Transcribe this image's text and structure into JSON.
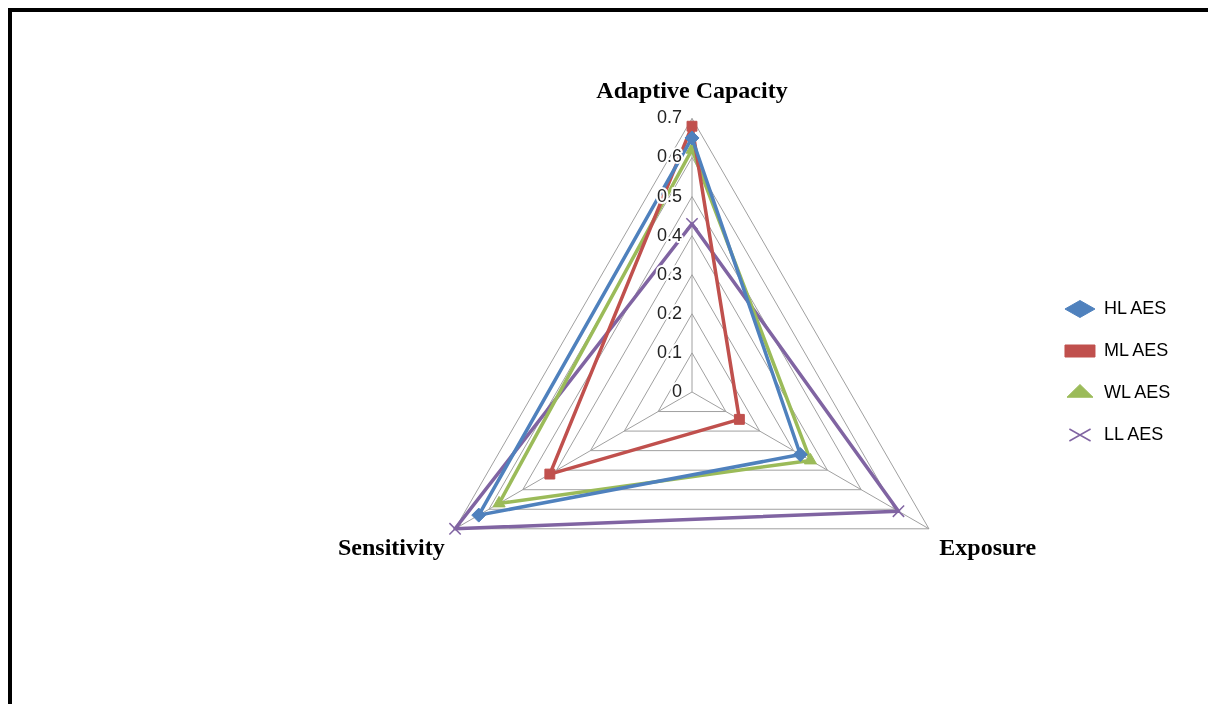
{
  "chart_data": {
    "type": "radar",
    "categories": [
      "Adaptive Capacity",
      "Exposure",
      "Sensitivity"
    ],
    "ylim": [
      0,
      0.7
    ],
    "yticks": [
      0,
      0.1,
      0.2,
      0.3,
      0.4,
      0.5,
      0.6,
      0.7
    ],
    "grid": true,
    "legend": "right",
    "line_style": "solid",
    "series": [
      {
        "name": "HL AES",
        "color": "#4f81bd",
        "marker": "diamond",
        "values": [
          0.65,
          0.32,
          0.63
        ]
      },
      {
        "name": "ML AES",
        "color": "#c0504d",
        "marker": "square",
        "values": [
          0.68,
          0.14,
          0.42
        ]
      },
      {
        "name": "WL AES",
        "color": "#9bbb59",
        "marker": "triangle",
        "values": [
          0.62,
          0.35,
          0.57
        ]
      },
      {
        "name": "LL AES",
        "color": "#8064a2",
        "marker": "cross",
        "values": [
          0.43,
          0.61,
          0.7
        ]
      }
    ]
  }
}
